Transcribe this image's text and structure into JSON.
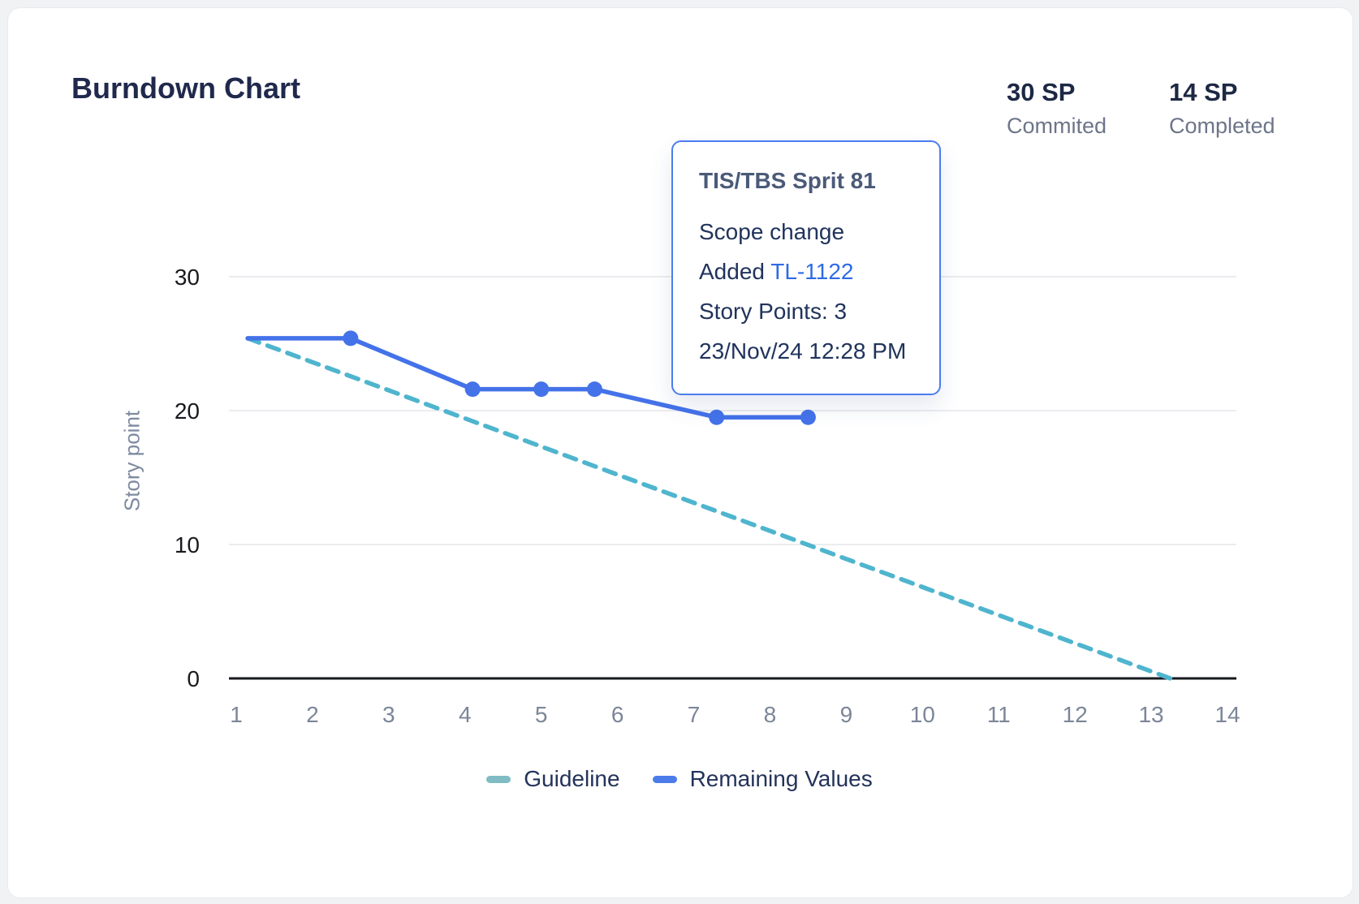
{
  "card": {
    "title": "Burndown Chart"
  },
  "stats": {
    "committed": {
      "value": "30 SP",
      "label": "Commited"
    },
    "completed": {
      "value": "14 SP",
      "label": "Completed"
    }
  },
  "tooltip": {
    "title": "TIS/TBS Sprit 81",
    "event": "Scope change",
    "added_prefix": "Added ",
    "issue": "TL-1122",
    "story_points": "Story Points: 3",
    "timestamp": "23/Nov/24 12:28 PM",
    "border_color": "#4b7cf0",
    "link_color": "#2e6be5"
  },
  "legend": {
    "items": [
      {
        "label": "Guideline",
        "color": "#7fbcc3"
      },
      {
        "label": "Remaining Values",
        "color": "#4b7ce9"
      }
    ]
  },
  "chart_data": {
    "type": "line",
    "title": "Burndown Chart",
    "xlabel": "",
    "ylabel": "Story point",
    "x_ticks": [
      1,
      2,
      3,
      4,
      5,
      6,
      7,
      8,
      9,
      10,
      11,
      12,
      13,
      14
    ],
    "y_ticks": [
      0,
      10,
      20,
      30
    ],
    "xlim": [
      0.9,
      14.15
    ],
    "ylim": [
      0,
      30
    ],
    "grid": "horizontal",
    "legend_position": "bottom",
    "series": [
      {
        "name": "Guideline",
        "color": "#4fb5ce",
        "dash": [
          15,
          11
        ],
        "points": [
          [
            1.15,
            25.4
          ],
          [
            13.25,
            0
          ]
        ]
      },
      {
        "name": "Remaining Values",
        "color": "#4472e9",
        "marker_start_index": 1,
        "points": [
          [
            1.15,
            25.4
          ],
          [
            2.5,
            25.4
          ],
          [
            4.1,
            21.6
          ],
          [
            5.0,
            21.6
          ],
          [
            5.7,
            21.6
          ],
          [
            7.3,
            19.5
          ],
          [
            8.5,
            19.5
          ]
        ]
      }
    ]
  }
}
